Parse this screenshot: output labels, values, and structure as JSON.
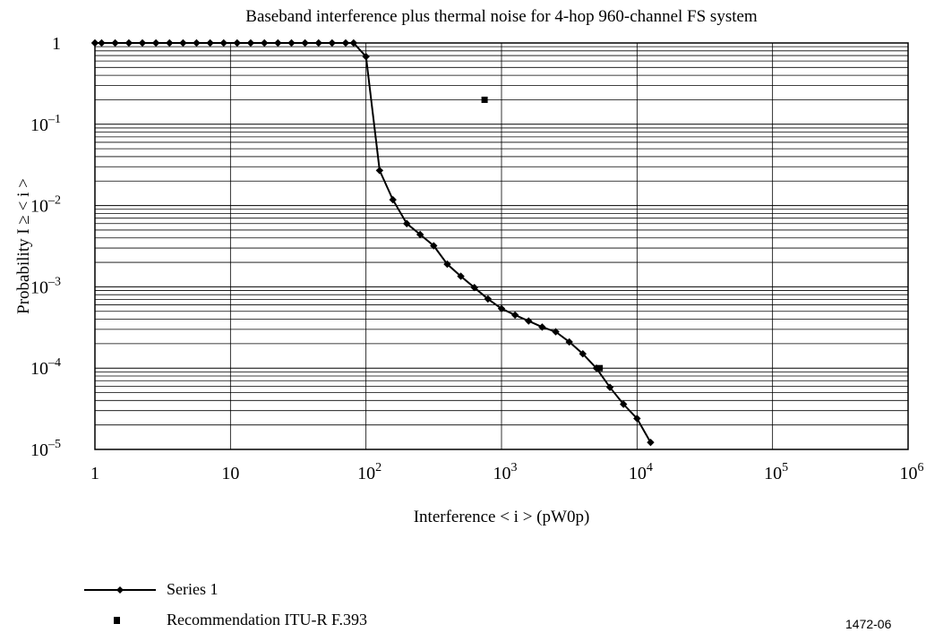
{
  "chart_data": {
    "type": "line",
    "title": "Baseband interference plus thermal noise for 4-hop 960-channel FS system",
    "xlabel": "Interference < i > (pW0p)",
    "ylabel": "Probability I ≥ < i >",
    "x_scale": "log",
    "y_scale": "log",
    "xlim": [
      1,
      1000000
    ],
    "ylim": [
      1e-05,
      1
    ],
    "x_ticks": [
      {
        "value": 1,
        "base": "1",
        "exp": ""
      },
      {
        "value": 10,
        "base": "10",
        "exp": ""
      },
      {
        "value": 100,
        "base": "10",
        "exp": "2"
      },
      {
        "value": 1000,
        "base": "10",
        "exp": "3"
      },
      {
        "value": 10000,
        "base": "10",
        "exp": "4"
      },
      {
        "value": 100000,
        "base": "10",
        "exp": "5"
      },
      {
        "value": 1000000,
        "base": "10",
        "exp": "6"
      }
    ],
    "y_ticks": [
      {
        "value": 1,
        "base": "1",
        "exp": ""
      },
      {
        "value": 0.1,
        "base": "10",
        "exp": "–1"
      },
      {
        "value": 0.01,
        "base": "10",
        "exp": "–2"
      },
      {
        "value": 0.001,
        "base": "10",
        "exp": "–3"
      },
      {
        "value": 0.0001,
        "base": "10",
        "exp": "–4"
      },
      {
        "value": 1e-05,
        "base": "10",
        "exp": "–5"
      }
    ],
    "grid": true,
    "legend_position": "bottom-left",
    "series": [
      {
        "name": "Series 1",
        "marker": "diamond",
        "line": true,
        "points": [
          [
            1,
            1
          ],
          [
            1.12,
            1
          ],
          [
            1.41,
            1
          ],
          [
            1.78,
            1
          ],
          [
            2.24,
            1
          ],
          [
            2.82,
            1
          ],
          [
            3.55,
            1
          ],
          [
            4.47,
            1
          ],
          [
            5.62,
            1
          ],
          [
            7.08,
            1
          ],
          [
            8.91,
            1
          ],
          [
            11.2,
            1
          ],
          [
            14.1,
            1
          ],
          [
            17.8,
            1
          ],
          [
            22.4,
            1
          ],
          [
            28.2,
            1
          ],
          [
            35.5,
            1
          ],
          [
            44.7,
            1
          ],
          [
            56.2,
            1
          ],
          [
            70.8,
            1
          ],
          [
            81,
            1
          ],
          [
            100,
            0.68
          ],
          [
            126,
            0.027
          ],
          [
            158,
            0.0118
          ],
          [
            200,
            0.006
          ],
          [
            251,
            0.0044
          ],
          [
            316,
            0.0032
          ],
          [
            398,
            0.0019
          ],
          [
            501,
            0.00135
          ],
          [
            631,
            0.00098
          ],
          [
            794,
            0.00071
          ],
          [
            1000,
            0.00054
          ],
          [
            1259,
            0.00045
          ],
          [
            1585,
            0.00038
          ],
          [
            1995,
            0.00032
          ],
          [
            2512,
            0.00028
          ],
          [
            3162,
            0.00021
          ],
          [
            3981,
            0.00015
          ],
          [
            5012,
            0.0001
          ],
          [
            6310,
            5.8e-05
          ],
          [
            7943,
            3.6e-05
          ],
          [
            10000,
            2.4e-05
          ],
          [
            12589,
            1.22e-05
          ]
        ]
      },
      {
        "name": "Recommendation ITU-R F.393",
        "marker": "square",
        "line": false,
        "points": [
          [
            750,
            0.2
          ],
          [
            5300,
            0.0001
          ]
        ]
      }
    ]
  },
  "figure_id": "1472-06"
}
